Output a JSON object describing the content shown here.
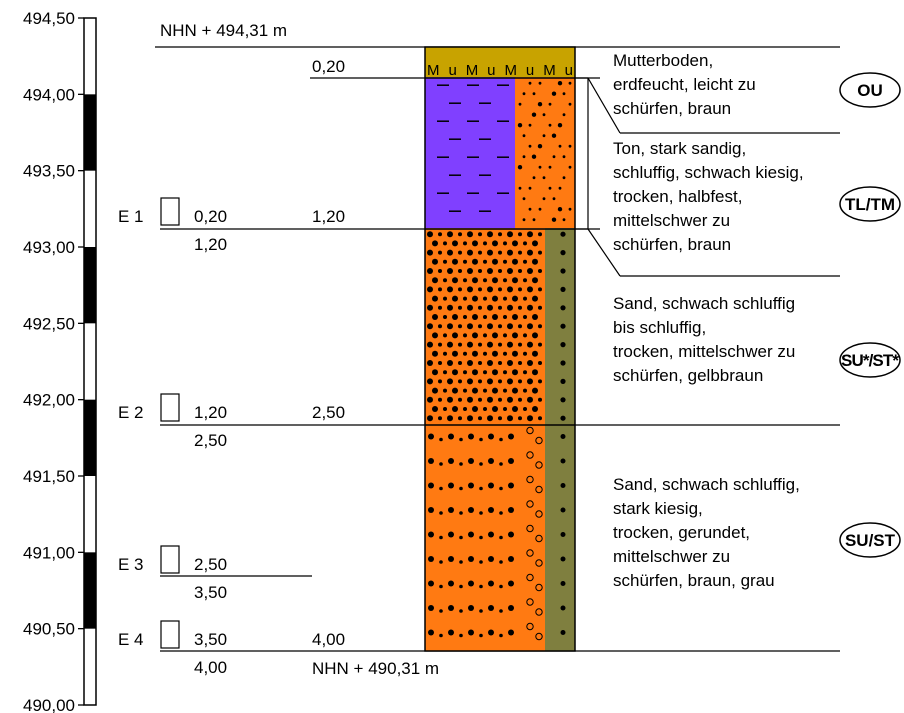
{
  "scale": {
    "ticks": [
      "494,50",
      "494,00",
      "493,50",
      "493,00",
      "492,50",
      "492,00",
      "491,50",
      "491,00",
      "490,50",
      "490,00"
    ],
    "tick_values": [
      494.5,
      494.0,
      493.5,
      493.0,
      492.5,
      492.0,
      491.5,
      491.0,
      490.5,
      490.0
    ]
  },
  "profile": {
    "top_elevation_label": "NHN + 494,31 m",
    "bottom_elevation_label": "NHN + 490,31 m",
    "depth_markers": [
      "0,20",
      "1,20",
      "2,50",
      "4,00"
    ],
    "topsoil_pattern_text": "MuMuMuMu"
  },
  "samples": [
    {
      "id": "E 1",
      "from": "0,20",
      "to": "1,20"
    },
    {
      "id": "E 2",
      "from": "1,20",
      "to": "2,50"
    },
    {
      "id": "E 3",
      "from": "2,50",
      "to": "3,50"
    },
    {
      "id": "E 4",
      "from": "3,50",
      "to": "4,00"
    }
  ],
  "layers": [
    {
      "top_m": 0.0,
      "bottom_m": 0.2,
      "group": "OU",
      "description": [
        "Mutterboden,",
        "erdfeucht, leicht zu",
        "schürfen, braun"
      ],
      "color_main": "#c8a300",
      "color_side": "#c8a300"
    },
    {
      "top_m": 0.2,
      "bottom_m": 1.2,
      "group": "TL/TM",
      "description": [
        "Ton, stark sandig,",
        "schluffig, schwach kiesig,",
        "trocken, halbfest,",
        "mittelschwer zu",
        "schürfen, braun"
      ],
      "color_main": "#8040ff",
      "color_side": "#ff7a12"
    },
    {
      "top_m": 1.2,
      "bottom_m": 2.5,
      "group": "SU*/ST*",
      "description": [
        "Sand, schwach schluffig",
        "bis schluffig,",
        "trocken, mittelschwer zu",
        "schürfen, gelbbraun"
      ],
      "color_main": "#ff7a12",
      "color_side": "#7f7f3f"
    },
    {
      "top_m": 2.5,
      "bottom_m": 4.0,
      "group": "SU/ST",
      "description": [
        "Sand, schwach schluffig,",
        "stark kiesig,",
        "trocken, gerundet,",
        "mittelschwer zu",
        "schürfen, braun, grau"
      ],
      "color_main": "#ff7a12",
      "color_side": "#7f7f3f"
    }
  ]
}
